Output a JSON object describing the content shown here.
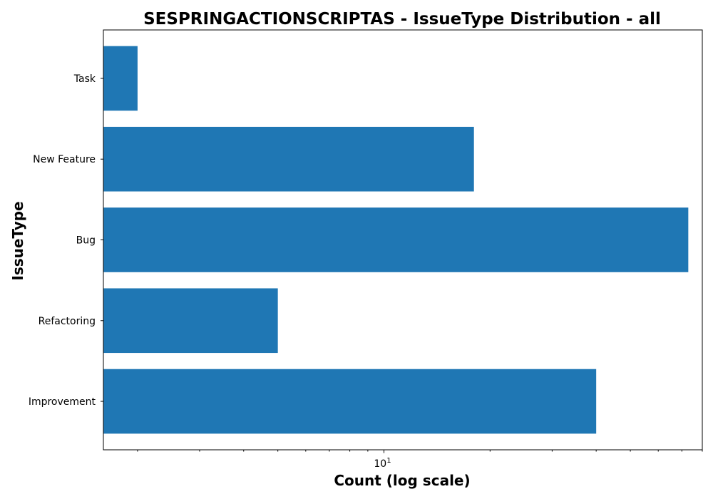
{
  "chart_data": {
    "type": "bar",
    "orientation": "horizontal",
    "title": "SESPRINGACTIONSCRIPTAS - IssueType Distribution - all",
    "xlabel": "Count (log scale)",
    "ylabel": "IssueType",
    "x_scale": "log",
    "xlim": [
      1.6,
      80
    ],
    "x_ticks": [
      {
        "value": 10,
        "base": "10",
        "exponent": "1"
      }
    ],
    "categories": [
      "Improvement",
      "Refactoring",
      "Bug",
      "New Feature",
      "Task"
    ],
    "values": [
      40,
      5,
      73,
      18,
      2
    ],
    "colors": {
      "bar": "#1f77b4",
      "axes": "#000000",
      "background": "#ffffff"
    },
    "grid": false,
    "legend": "none"
  }
}
